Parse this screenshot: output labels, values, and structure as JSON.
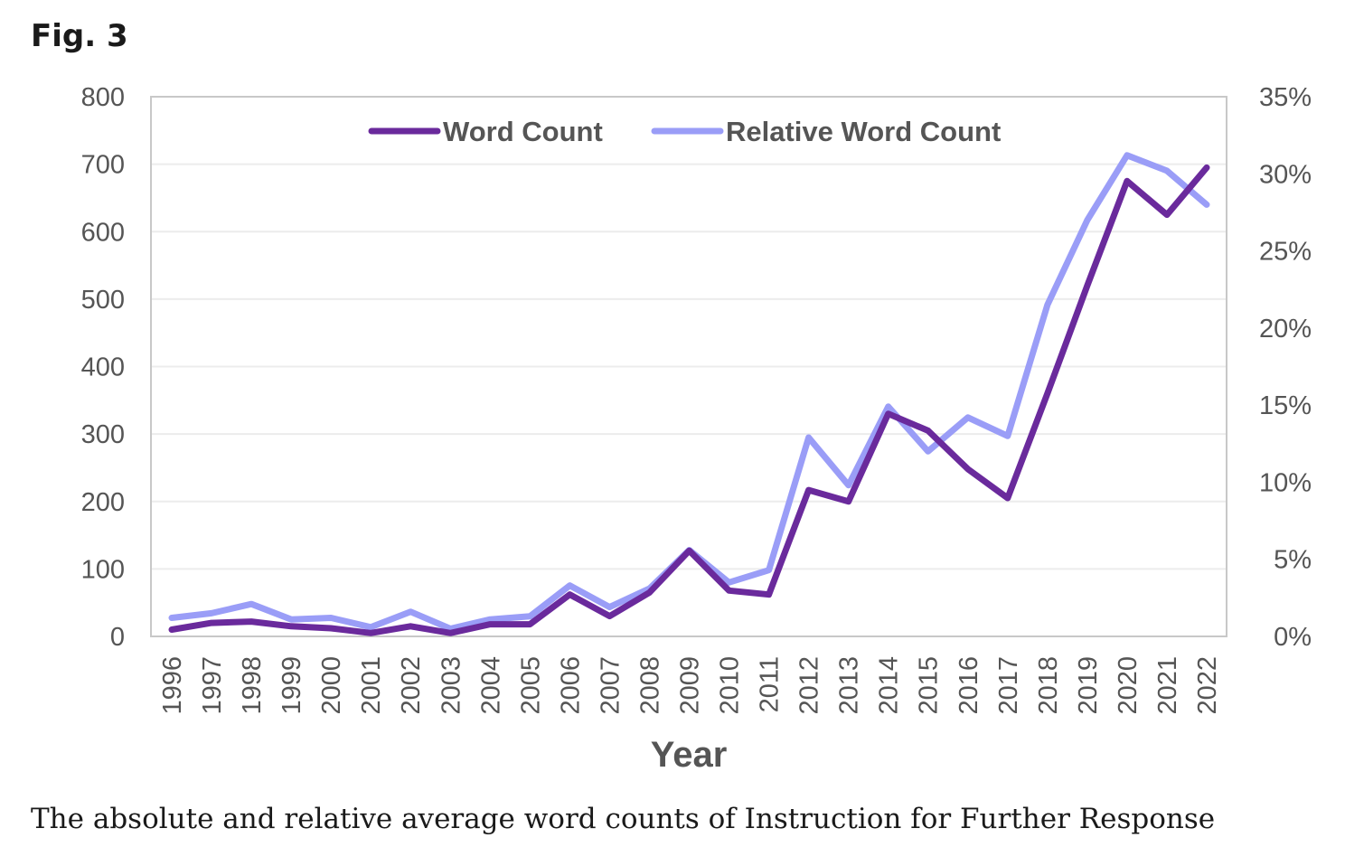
{
  "figure": {
    "label": "Fig. 3",
    "caption": "The absolute and relative average word counts of Instruction for Further Response"
  },
  "chart_data": {
    "type": "line",
    "title": "",
    "xlabel": "Year",
    "ylabel": "",
    "y2label": "",
    "categories": [
      "1996",
      "1997",
      "1998",
      "1999",
      "2000",
      "2001",
      "2002",
      "2003",
      "2004",
      "2005",
      "2006",
      "2007",
      "2008",
      "2009",
      "2010",
      "2011",
      "2012",
      "2013",
      "2014",
      "2015",
      "2016",
      "2017",
      "2018",
      "2019",
      "2020",
      "2021",
      "2022"
    ],
    "ylim": [
      0,
      800
    ],
    "yticks": [
      "0",
      "100",
      "200",
      "300",
      "400",
      "500",
      "600",
      "700",
      "800"
    ],
    "y2lim": [
      0,
      35
    ],
    "y2ticks": [
      "0%",
      "5%",
      "10%",
      "15%",
      "20%",
      "25%",
      "30%",
      "35%"
    ],
    "grid": true,
    "legend_position": "top-center",
    "series": [
      {
        "name": "Word Count",
        "axis": "left",
        "color": "#6a2a9c",
        "values": [
          10,
          20,
          22,
          15,
          12,
          5,
          15,
          5,
          18,
          18,
          62,
          30,
          65,
          127,
          68,
          62,
          217,
          200,
          330,
          305,
          248,
          205,
          360,
          520,
          675,
          625,
          695
        ]
      },
      {
        "name": "Relative Word Count",
        "axis": "right",
        "color": "#9a9df7",
        "values": [
          1.2,
          1.5,
          2.1,
          1.1,
          1.2,
          0.6,
          1.6,
          0.5,
          1.1,
          1.3,
          3.3,
          1.9,
          3.1,
          5.6,
          3.5,
          4.3,
          12.9,
          9.8,
          14.9,
          12.0,
          14.2,
          13.0,
          21.5,
          27.0,
          31.2,
          30.2,
          28.0
        ]
      }
    ]
  }
}
